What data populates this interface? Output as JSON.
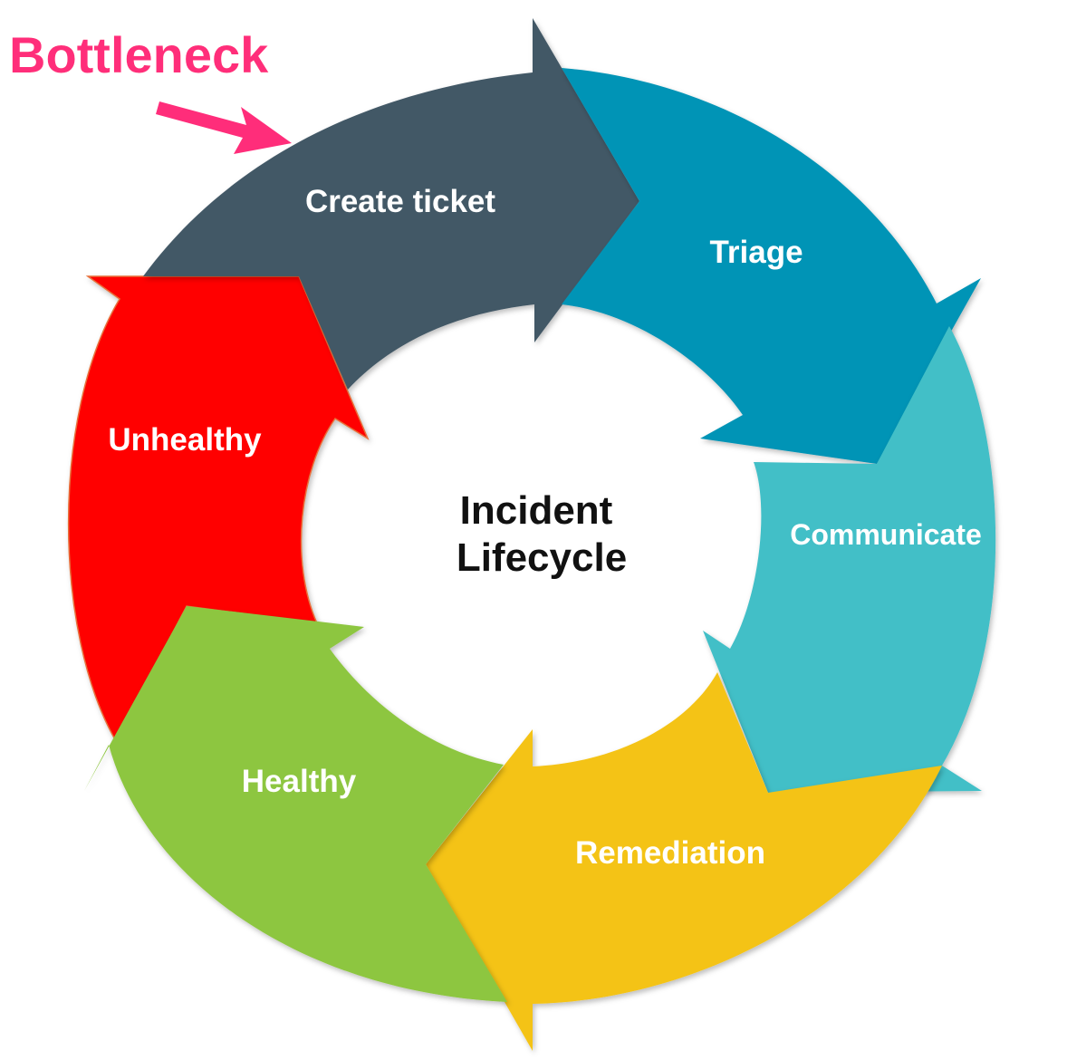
{
  "diagram": {
    "center_title_lines": [
      "Incident",
      "Lifecycle"
    ],
    "callout": {
      "text": "Bottleneck",
      "color": "#ff2d7a"
    },
    "stages": [
      {
        "label": "Create ticket",
        "color": "#435866"
      },
      {
        "label": "Triage",
        "color": "#0594b6"
      },
      {
        "label": "Communicate",
        "color": "#42bfc7"
      },
      {
        "label": "Remediation",
        "color": "#f4c316"
      },
      {
        "label": "Healthy",
        "color": "#8dc63f"
      },
      {
        "label": "Unhealthy",
        "color": "#ff0000"
      }
    ]
  }
}
